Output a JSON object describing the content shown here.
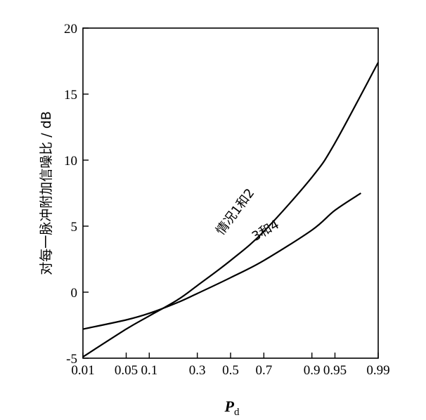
{
  "chart_data": {
    "type": "line",
    "xscale": "normal-probability",
    "x_ticks": [
      "0.01",
      "0.05",
      "0.1",
      "0.3",
      "0.5",
      "0.7",
      "0.9",
      "0.95",
      "0.99"
    ],
    "x_tick_values": [
      0.01,
      0.05,
      0.1,
      0.3,
      0.5,
      0.7,
      0.9,
      0.95,
      0.99
    ],
    "xlabel_main": "P",
    "xlabel_sub": "d",
    "ylabel": "对每一脉冲附加信噪比 / dB",
    "y_ticks": [
      "-5",
      "0",
      "5",
      "10",
      "15",
      "20"
    ],
    "ylim": [
      -5,
      20
    ],
    "series": [
      {
        "name": "情况1和2",
        "x": [
          0.01,
          0.05,
          0.1,
          0.2,
          0.3,
          0.5,
          0.7,
          0.9,
          0.95,
          0.99
        ],
        "y": [
          -4.9,
          -2.8,
          -1.8,
          -0.6,
          0.5,
          2.4,
          4.6,
          8.7,
          11.3,
          17.4
        ]
      },
      {
        "name": "3和4",
        "x": [
          0.01,
          0.05,
          0.1,
          0.2,
          0.3,
          0.5,
          0.7,
          0.9,
          0.95,
          0.98
        ],
        "y": [
          -2.8,
          -2.1,
          -1.6,
          -0.8,
          -0.1,
          1.1,
          2.4,
          4.7,
          6.2,
          7.5
        ]
      }
    ],
    "annotations": [
      {
        "text": "情况1和2",
        "series": 0
      },
      {
        "text": "3和4",
        "series": 1
      }
    ]
  }
}
